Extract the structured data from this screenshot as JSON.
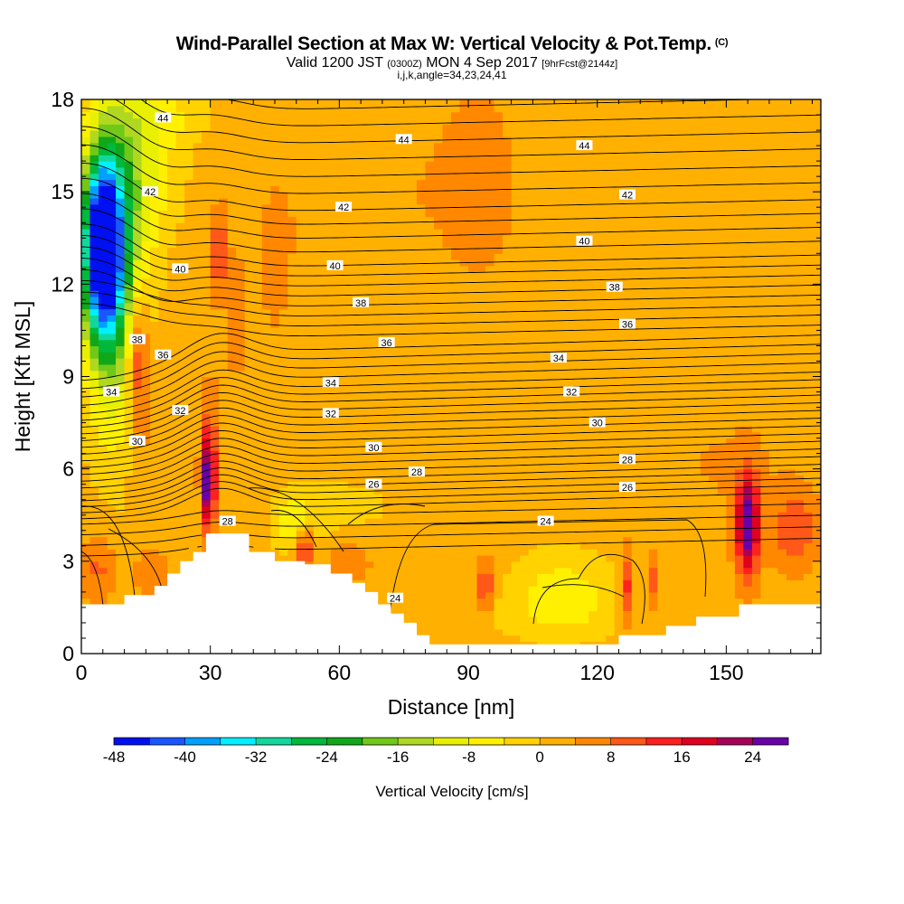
{
  "title": {
    "main": "Wind-Parallel Section at Max W: Vertical Velocity & Pot.Temp.",
    "copyright": "(C)",
    "valid_prefix": "Valid 1200 JST",
    "valid_utc": "(0300Z)",
    "valid_date": "MON 4 Sep 2017",
    "forecast": "[9hrFcst@2144z]",
    "indices": "i,j,k,angle=34,23,24,41"
  },
  "chart_data": {
    "type": "heatmap",
    "title": "Wind-Parallel Section at Max W: Vertical Velocity & Pot.Temp.",
    "xlabel": "Distance [nm]",
    "ylabel": "Height [Kft MSL]",
    "xlim": [
      0,
      172
    ],
    "ylim": [
      0,
      18
    ],
    "x_ticks": [
      0,
      30,
      60,
      90,
      120,
      150
    ],
    "y_ticks": [
      0,
      3,
      6,
      9,
      12,
      15,
      18
    ],
    "colorbar": {
      "label": "Vertical Velocity [cm/s]",
      "tick_values": [
        -48,
        -40,
        -32,
        -24,
        -16,
        -8,
        0,
        8,
        16,
        24
      ],
      "levels": [
        -48,
        -44,
        -40,
        -36,
        -32,
        -28,
        -24,
        -20,
        -16,
        -12,
        -8,
        -4,
        0,
        4,
        8,
        12,
        16,
        20,
        24,
        28
      ],
      "colors": [
        "#0010f0",
        "#1a56ff",
        "#00a0ff",
        "#00f0ff",
        "#10d89c",
        "#00b83c",
        "#10a818",
        "#70c818",
        "#b0d820",
        "#e8f000",
        "#fff000",
        "#ffd200",
        "#ffb000",
        "#ff8800",
        "#ff5818",
        "#ff2020",
        "#e00020",
        "#a8005a",
        "#6a00a8"
      ]
    },
    "contour_field": "Potential Temperature",
    "theta_contour_labels": [
      {
        "value": 44,
        "x": 19,
        "y": 17.4
      },
      {
        "value": 44,
        "x": 75,
        "y": 16.7
      },
      {
        "value": 44,
        "x": 117,
        "y": 16.5
      },
      {
        "value": 42,
        "x": 16,
        "y": 15.0
      },
      {
        "value": 42,
        "x": 61,
        "y": 14.5
      },
      {
        "value": 42,
        "x": 127,
        "y": 14.9
      },
      {
        "value": 40,
        "x": 23,
        "y": 12.5
      },
      {
        "value": 40,
        "x": 59,
        "y": 12.6
      },
      {
        "value": 40,
        "x": 117,
        "y": 13.4
      },
      {
        "value": 38,
        "x": 13,
        "y": 10.2
      },
      {
        "value": 38,
        "x": 65,
        "y": 11.4
      },
      {
        "value": 38,
        "x": 124,
        "y": 11.9
      },
      {
        "value": 36,
        "x": 19,
        "y": 9.7
      },
      {
        "value": 36,
        "x": 71,
        "y": 10.1
      },
      {
        "value": 36,
        "x": 127,
        "y": 10.7
      },
      {
        "value": 34,
        "x": 7,
        "y": 8.5
      },
      {
        "value": 34,
        "x": 58,
        "y": 8.8
      },
      {
        "value": 34,
        "x": 111,
        "y": 9.6
      },
      {
        "value": 32,
        "x": 23,
        "y": 7.9
      },
      {
        "value": 32,
        "x": 58,
        "y": 7.8
      },
      {
        "value": 32,
        "x": 114,
        "y": 8.5
      },
      {
        "value": 30,
        "x": 13,
        "y": 6.9
      },
      {
        "value": 30,
        "x": 68,
        "y": 6.7
      },
      {
        "value": 30,
        "x": 120,
        "y": 7.5
      },
      {
        "value": 28,
        "x": 78,
        "y": 5.9
      },
      {
        "value": 28,
        "x": 127,
        "y": 6.3
      },
      {
        "value": 28,
        "x": 34,
        "y": 4.3
      },
      {
        "value": 26,
        "x": 68,
        "y": 5.5
      },
      {
        "value": 26,
        "x": 127,
        "y": 5.4
      },
      {
        "value": 24,
        "x": 108,
        "y": 4.3
      },
      {
        "value": 24,
        "x": 73,
        "y": 1.8
      }
    ],
    "terrain_top_kft": [
      [
        0,
        1.6
      ],
      [
        10,
        1.6
      ],
      [
        10,
        1.9
      ],
      [
        17,
        1.9
      ],
      [
        17,
        2.2
      ],
      [
        20,
        2.2
      ],
      [
        20,
        2.6
      ],
      [
        23,
        2.6
      ],
      [
        23,
        3.0
      ],
      [
        26,
        3.0
      ],
      [
        26,
        3.3
      ],
      [
        29,
        3.3
      ],
      [
        29,
        3.9
      ],
      [
        39,
        3.9
      ],
      [
        39,
        3.3
      ],
      [
        45,
        3.3
      ],
      [
        45,
        3.0
      ],
      [
        52,
        3.0
      ],
      [
        52,
        2.9
      ],
      [
        58,
        2.9
      ],
      [
        58,
        2.6
      ],
      [
        63,
        2.6
      ],
      [
        63,
        2.3
      ],
      [
        66,
        2.3
      ],
      [
        66,
        2.0
      ],
      [
        69,
        2.0
      ],
      [
        69,
        1.6
      ],
      [
        72,
        1.6
      ],
      [
        72,
        1.3
      ],
      [
        75,
        1.3
      ],
      [
        75,
        1.0
      ],
      [
        78,
        1.0
      ],
      [
        78,
        0.6
      ],
      [
        81,
        0.6
      ],
      [
        81,
        0.3
      ],
      [
        125,
        0.3
      ],
      [
        125,
        0.6
      ],
      [
        136,
        0.6
      ],
      [
        136,
        0.9
      ],
      [
        143,
        0.9
      ],
      [
        143,
        1.2
      ],
      [
        153,
        1.2
      ],
      [
        153,
        1.6
      ],
      [
        172,
        1.6
      ]
    ]
  }
}
